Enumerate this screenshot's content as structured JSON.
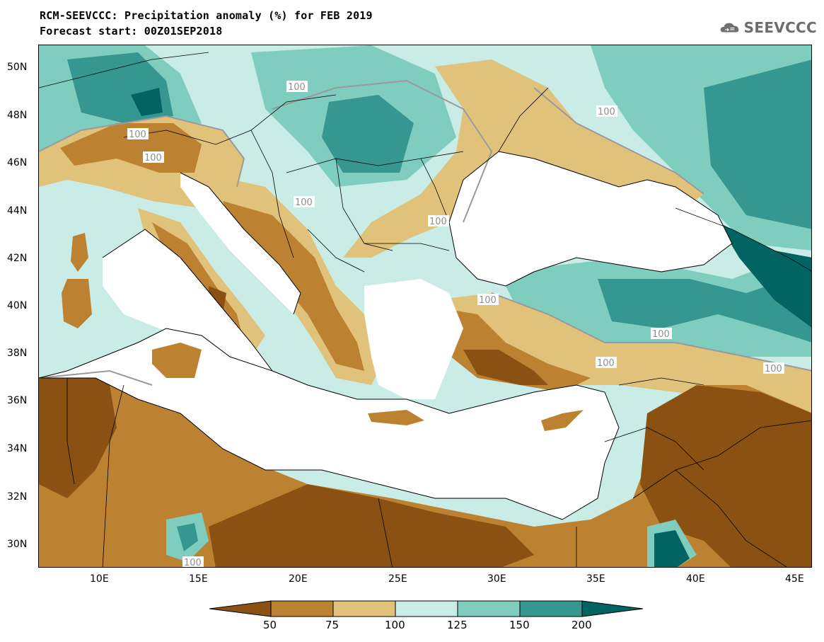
{
  "header": {
    "title_line1": "RCM-SEEVCCC: Precipitation anomaly (%) for FEB 2019",
    "title_line2": "Forecast start: 00Z01SEP2018"
  },
  "logo": {
    "text": "SEEVCCC",
    "icon": "cloud-icon"
  },
  "map": {
    "latitude_labels": [
      "50N",
      "48N",
      "46N",
      "44N",
      "42N",
      "40N",
      "38N",
      "36N",
      "34N",
      "32N",
      "30N"
    ],
    "longitude_labels": [
      "10E",
      "15E",
      "20E",
      "25E",
      "30E",
      "35E",
      "40E",
      "45E"
    ],
    "contour_labels": [
      "100",
      "100",
      "100",
      "100",
      "100",
      "100",
      "100",
      "100",
      "100",
      "100",
      "100"
    ]
  },
  "colorbar": {
    "labels": [
      "50",
      "75",
      "100",
      "125",
      "150",
      "200"
    ],
    "colors": [
      "#8a5113",
      "#bd8132",
      "#e0c27b",
      "#c9ece6",
      "#7fcdbf",
      "#35978f",
      "#016462"
    ]
  },
  "colors": {
    "very_dry": "#8a5113",
    "dry": "#bd8132",
    "slightly_dry": "#e0c27b",
    "slightly_wet": "#c9ece6",
    "wet": "#7fcdbf",
    "very_wet": "#35978f",
    "extreme_wet": "#016462",
    "sea": "#ffffff",
    "contour_line": "#9a9a9a"
  }
}
